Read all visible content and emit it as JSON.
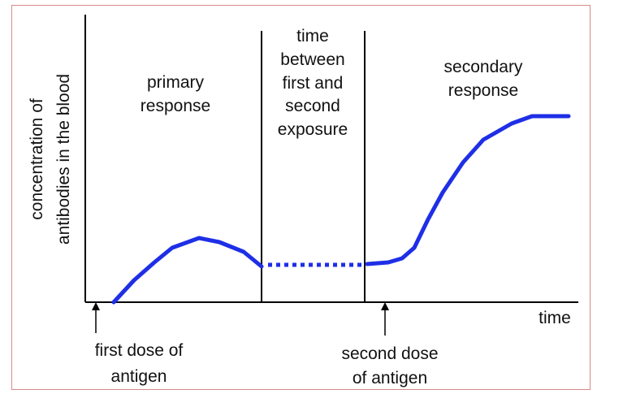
{
  "diagram": {
    "y_axis_label": [
      "concentration of",
      "antibodies in the blood"
    ],
    "x_axis_label": "time",
    "primary_region_label": [
      "primary",
      "response"
    ],
    "between_region_label": [
      "time",
      "between",
      "first and",
      "second",
      "exposure"
    ],
    "secondary_region_label": [
      "secondary",
      "response"
    ],
    "first_dose_label": [
      "first dose of",
      "antigen"
    ],
    "second_dose_label": [
      "second dose",
      "of antigen"
    ],
    "curve_color": "#1e2fe6",
    "line_color": "#000000",
    "frame_color": "#d98a8a"
  }
}
